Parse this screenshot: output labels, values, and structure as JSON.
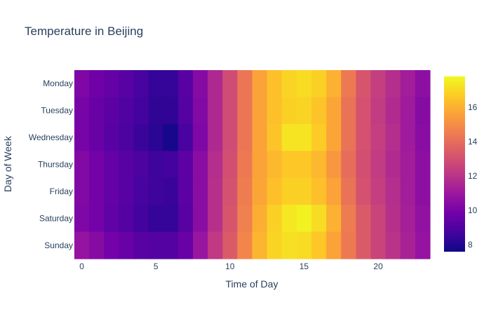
{
  "chart_data": {
    "type": "heatmap",
    "title": "Temperature in Beijing",
    "xlabel": "Time of Day",
    "ylabel": "Day of Week",
    "x": [
      0,
      1,
      2,
      3,
      4,
      5,
      6,
      7,
      8,
      9,
      10,
      11,
      12,
      13,
      14,
      15,
      16,
      17,
      18,
      19,
      20,
      21,
      22,
      23
    ],
    "x_ticks": [
      0,
      5,
      10,
      15,
      20
    ],
    "y_categories": [
      "Monday",
      "Tuesday",
      "Wednesday",
      "Thursday",
      "Friday",
      "Saturday",
      "Sunday"
    ],
    "z": [
      [
        10.2,
        9.8,
        9.5,
        9.2,
        8.8,
        8.4,
        8.4,
        9.2,
        10.4,
        11.6,
        12.9,
        14.3,
        15.6,
        16.4,
        16.9,
        17.1,
        16.8,
        16.0,
        14.4,
        13.2,
        12.4,
        11.8,
        11.2,
        10.6
      ],
      [
        10.0,
        9.6,
        9.3,
        9.0,
        8.7,
        8.3,
        8.3,
        9.1,
        10.3,
        11.6,
        12.9,
        14.3,
        15.6,
        16.4,
        16.8,
        16.9,
        16.5,
        15.7,
        14.2,
        13.1,
        12.3,
        11.7,
        11.1,
        10.4
      ],
      [
        10.0,
        9.6,
        9.2,
        8.9,
        8.5,
        8.2,
        7.8,
        8.8,
        10.2,
        11.6,
        12.9,
        14.3,
        15.6,
        16.5,
        17.3,
        17.3,
        16.7,
        15.7,
        14.2,
        13.1,
        12.4,
        11.8,
        11.1,
        10.5
      ],
      [
        10.3,
        9.9,
        9.5,
        9.2,
        8.9,
        8.6,
        8.7,
        9.3,
        10.5,
        11.8,
        13.0,
        14.4,
        15.6,
        16.2,
        16.6,
        16.6,
        16.2,
        15.3,
        14.0,
        13.0,
        12.3,
        11.7,
        11.2,
        10.6
      ],
      [
        10.3,
        9.9,
        9.5,
        9.2,
        8.8,
        8.6,
        8.5,
        9.3,
        10.5,
        11.9,
        13.1,
        14.5,
        15.7,
        16.4,
        16.8,
        16.8,
        16.4,
        15.6,
        14.2,
        13.1,
        12.4,
        11.8,
        11.2,
        10.6
      ],
      [
        10.2,
        9.9,
        9.4,
        9.1,
        8.7,
        8.4,
        8.4,
        9.2,
        10.5,
        11.9,
        13.2,
        14.6,
        15.9,
        16.8,
        17.4,
        17.6,
        17.1,
        16.0,
        14.5,
        13.4,
        12.6,
        11.9,
        11.3,
        10.7
      ],
      [
        10.8,
        10.4,
        9.9,
        9.6,
        9.2,
        9.1,
        9.1,
        9.6,
        10.9,
        12.2,
        13.4,
        14.8,
        16.1,
        16.9,
        17.2,
        17.1,
        16.6,
        15.6,
        14.4,
        13.4,
        12.6,
        12.0,
        11.4,
        10.8
      ]
    ],
    "colorbar": {
      "ticks": [
        8,
        10,
        12,
        14,
        16
      ],
      "zmin": 7.6,
      "zmax": 17.8
    },
    "colorscale": [
      "#0d0887",
      "#46039f",
      "#7201a8",
      "#9c179e",
      "#bd3786",
      "#d8576b",
      "#ed7953",
      "#fb9f3a",
      "#fdca26",
      "#f0f921"
    ],
    "grid": false,
    "legend": "colorbar-right"
  }
}
